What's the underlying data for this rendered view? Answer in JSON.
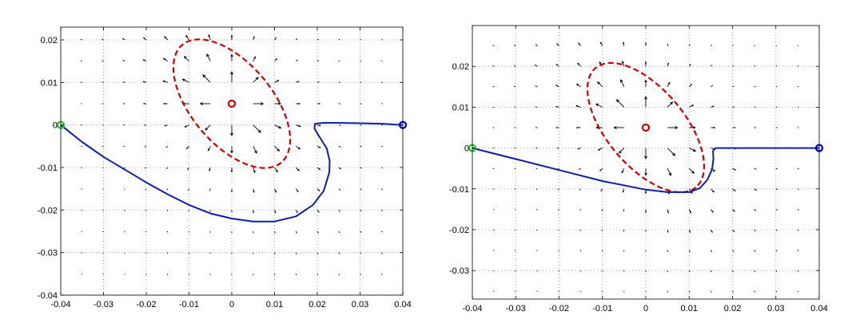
{
  "chart_data": [
    {
      "type": "line",
      "title": "",
      "xlabel": "",
      "ylabel": "",
      "xlim": [
        -0.04,
        0.04
      ],
      "ylim": [
        -0.04,
        0.023
      ],
      "grid": true,
      "xticks": [
        -0.04,
        -0.03,
        -0.02,
        -0.01,
        0,
        0.01,
        0.02,
        0.03,
        0.04
      ],
      "xtick_labels": [
        "-0.04",
        "-0.03",
        "-0.02",
        "-0.01",
        "0",
        "0.01",
        "0.02",
        "0.03",
        "0.04"
      ],
      "yticks": [
        0.02,
        0.01,
        0,
        -0.01,
        -0.02,
        -0.03,
        -0.04
      ],
      "ytick_labels": [
        "0.02",
        "0.01",
        "0",
        "-0.01",
        "-0.02",
        "-0.03",
        "-0.04"
      ],
      "obstacle": {
        "center": [
          0,
          0.005
        ],
        "semi_major": 0.018,
        "semi_minor": 0.0095,
        "angle_deg": -50,
        "color": "#cc0000",
        "style": "dashed"
      },
      "start_point": {
        "x": -0.04,
        "y": 0,
        "color": "#22cc22"
      },
      "goal_point": {
        "x": 0.04,
        "y": 0,
        "color": "#0000cc"
      },
      "obstacle_center": {
        "x": 0,
        "y": 0.005,
        "color": "#cc0000"
      },
      "series": [
        {
          "color": "#0b1fa8",
          "points": [
            [
              -0.04,
              0
            ],
            [
              -0.035,
              -0.004
            ],
            [
              -0.03,
              -0.0075
            ],
            [
              -0.025,
              -0.0105
            ],
            [
              -0.02,
              -0.0135
            ],
            [
              -0.015,
              -0.0163
            ],
            [
              -0.01,
              -0.0188
            ],
            [
              -0.005,
              -0.0208
            ],
            [
              0,
              -0.022
            ],
            [
              0.005,
              -0.0227
            ],
            [
              0.01,
              -0.0227
            ],
            [
              0.015,
              -0.0215
            ],
            [
              0.019,
              -0.0188
            ],
            [
              0.0215,
              -0.0155
            ],
            [
              0.0228,
              -0.0112
            ],
            [
              0.0229,
              -0.0085
            ],
            [
              0.0222,
              -0.0055
            ],
            [
              0.0205,
              -0.0028
            ],
            [
              0.0193,
              -0.0008
            ],
            [
              0.0195,
              0.0003
            ],
            [
              0.0215,
              0.0005
            ],
            [
              0.025,
              0.0005
            ],
            [
              0.03,
              0.0004
            ],
            [
              0.035,
              0.0003
            ],
            [
              0.04,
              0
            ]
          ]
        }
      ],
      "vector_field": {
        "type": "radial-repulsive",
        "center": [
          0,
          0.005
        ],
        "step": 0.005
      }
    },
    {
      "type": "line",
      "title": "",
      "xlabel": "",
      "ylabel": "",
      "xlim": [
        -0.04,
        0.04
      ],
      "ylim": [
        -0.037,
        0.03
      ],
      "grid": true,
      "xticks": [
        -0.04,
        -0.03,
        -0.02,
        -0.01,
        0,
        0.01,
        0.02,
        0.03,
        0.04
      ],
      "xtick_labels": [
        "-0.04",
        "-0.03",
        "-0.02",
        "-0.01",
        "0",
        "0.01",
        "0.02",
        "0.03",
        "0.04"
      ],
      "yticks": [
        0.02,
        0.01,
        0,
        -0.01,
        -0.02,
        -0.03
      ],
      "ytick_labels": [
        "0.02",
        "0.01",
        "0",
        "-0.01",
        "-0.02",
        "-0.03"
      ],
      "obstacle": {
        "center": [
          0,
          0.005
        ],
        "semi_major": 0.018,
        "semi_minor": 0.0095,
        "angle_deg": -50,
        "color": "#cc0000",
        "style": "dashed"
      },
      "start_point": {
        "x": -0.04,
        "y": 0,
        "color": "#22cc22"
      },
      "goal_point": {
        "x": 0.04,
        "y": 0,
        "color": "#0000cc"
      },
      "obstacle_center": {
        "x": 0,
        "y": 0.005,
        "color": "#cc0000"
      },
      "series": [
        {
          "color": "#0b1fa8",
          "points": [
            [
              -0.04,
              0
            ],
            [
              -0.03,
              -0.0027
            ],
            [
              -0.02,
              -0.0054
            ],
            [
              -0.01,
              -0.0081
            ],
            [
              0,
              -0.0102
            ],
            [
              0.005,
              -0.0108
            ],
            [
              0.01,
              -0.0108
            ],
            [
              0.0125,
              -0.0098
            ],
            [
              0.0142,
              -0.0078
            ],
            [
              0.0153,
              -0.0052
            ],
            [
              0.0156,
              -0.0027
            ],
            [
              0.0155,
              -0.0007
            ],
            [
              0.016,
              0
            ],
            [
              0.02,
              0
            ],
            [
              0.03,
              0
            ],
            [
              0.04,
              0
            ]
          ]
        }
      ],
      "vector_field": {
        "type": "radial-repulsive",
        "center": [
          0,
          0.005
        ],
        "step": 0.005
      }
    }
  ]
}
